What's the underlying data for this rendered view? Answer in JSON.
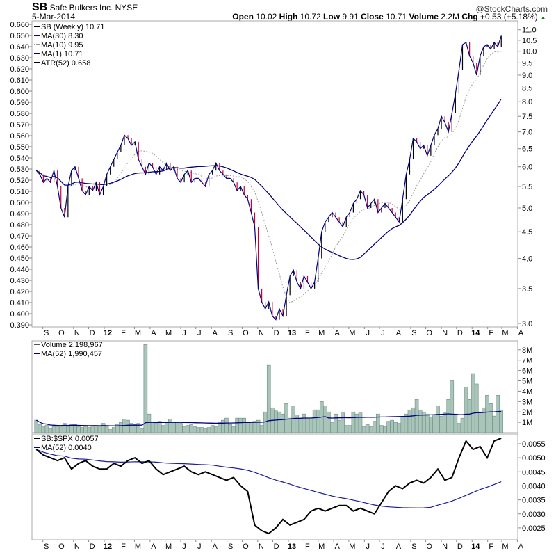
{
  "header": {
    "symbol": "SB",
    "company": "Safe Bulkers Inc. NYSE",
    "date": "5-Mar-2014",
    "watermark": "@StockCharts.com",
    "quote": {
      "open_label": "Open",
      "open": "10.02",
      "high_label": "High",
      "high": "10.72",
      "low_label": "Low",
      "low": "9.91",
      "close_label": "Close",
      "close": "10.71",
      "volume_label": "Volume",
      "volume": "2.2M",
      "chg_label": "Chg",
      "chg": "+0.53 (+5.18%)"
    }
  },
  "colors": {
    "price": "#000080",
    "ma30": "#000080",
    "ma10": "#999999",
    "up": "#000000",
    "down": "#cc0033",
    "volume_fill": "#a9c4b9",
    "volume_stroke": "#6f8f83",
    "ratio": "#000000",
    "ratio_ma": "#1a1aa0",
    "accent_up": "#008000"
  },
  "chart_data": [
    {
      "type": "line",
      "panel": "price",
      "legend": [
        "SB (Weekly) 10.71",
        "MA(30) 8.30",
        "MA(10) 9.95",
        "MA(1) 10.71",
        "ATR(52) 0.658"
      ],
      "right_ticks": [
        3.0,
        3.5,
        4.0,
        4.5,
        5.0,
        5.5,
        6.0,
        6.5,
        7.0,
        7.5,
        8.0,
        8.5,
        9.0,
        9.5,
        10.0,
        10.5,
        11.0
      ],
      "right_scale": "log",
      "left_ticks": [
        "0.660",
        "0.650",
        "0.640",
        "0.630",
        "0.620",
        "0.610",
        "0.600",
        "0.590",
        "0.580",
        "0.570",
        "0.560",
        "0.550",
        "0.540",
        "0.530",
        "0.520",
        "0.510",
        "0.500",
        "0.490",
        "0.480",
        "0.470",
        "0.460",
        "0.450",
        "0.440",
        "0.430",
        "0.420",
        "0.410",
        "0.400",
        "0.390"
      ],
      "x_ticks": [
        "S",
        "O",
        "N",
        "D",
        "12",
        "F",
        "M",
        "A",
        "M",
        "J",
        "J",
        "A",
        "S",
        "O",
        "N",
        "D",
        "13",
        "F",
        "M",
        "A",
        "M",
        "J",
        "J",
        "A",
        "S",
        "O",
        "N",
        "D",
        "14",
        "F",
        "M",
        "A"
      ],
      "x_range": [
        "2011-08",
        "2014-04"
      ],
      "grid": false,
      "legend_placement": "top-left",
      "closes": [
        5.9,
        5.8,
        5.6,
        5.7,
        5.6,
        5.9,
        5.5,
        5.0,
        4.8,
        5.5,
        5.9,
        6.0,
        5.7,
        5.4,
        5.3,
        5.5,
        5.4,
        5.6,
        5.3,
        5.5,
        5.8,
        6.0,
        6.2,
        6.4,
        6.6,
        6.9,
        6.8,
        6.6,
        6.7,
        6.2,
        6.0,
        5.8,
        6.1,
        6.0,
        5.8,
        6.0,
        5.9,
        6.1,
        5.9,
        6.0,
        5.7,
        5.6,
        5.8,
        5.9,
        5.6,
        5.7,
        5.7,
        5.6,
        5.5,
        5.8,
        5.9,
        6.1,
        5.9,
        5.8,
        5.7,
        5.7,
        5.6,
        5.4,
        5.5,
        5.3,
        5.2,
        4.9,
        4.6,
        3.5,
        3.3,
        3.2,
        3.3,
        3.1,
        3.05,
        3.2,
        3.1,
        3.4,
        3.7,
        3.8,
        3.6,
        3.5,
        3.7,
        3.6,
        3.5,
        3.6,
        4.0,
        4.5,
        4.7,
        4.8,
        4.9,
        4.8,
        4.7,
        4.6,
        4.8,
        4.9,
        5.1,
        5.2,
        5.4,
        5.3,
        5.0,
        5.1,
        5.2,
        4.9,
        5.0,
        5.1,
        5.0,
        4.9,
        4.8,
        4.7,
        5.2,
        5.8,
        6.2,
        6.8,
        6.7,
        6.5,
        6.6,
        6.3,
        6.6,
        6.9,
        7.1,
        7.5,
        7.3,
        7.0,
        7.6,
        8.3,
        9.2,
        10.3,
        10.4,
        9.8,
        9.5,
        9.0,
        9.8,
        10.2,
        10.3,
        10.1,
        10.4,
        10.2,
        10.71
      ]
    },
    {
      "type": "bar",
      "panel": "volume",
      "legend": [
        "Volume 2,198,967",
        "MA(52) 1,990,457"
      ],
      "y_ticks": [
        "1M",
        "2M",
        "3M",
        "4M",
        "5M",
        "6M",
        "7M",
        "8M"
      ],
      "unit": "millions",
      "values": [
        1.2,
        0.8,
        0.6,
        0.7,
        0.4,
        0.6,
        0.6,
        0.6,
        0.9,
        0.6,
        0.8,
        0.8,
        0.6,
        0.5,
        0.6,
        0.5,
        0.7,
        0.7,
        0.6,
        0.9,
        0.6,
        0.3,
        0.5,
        0.8,
        1.0,
        1.3,
        1.2,
        0.9,
        0.8,
        0.9,
        0.4,
        8.5,
        1.8,
        1.0,
        0.9,
        1.1,
        0.7,
        1.0,
        1.3,
        1.0,
        1.0,
        0.9,
        0.6,
        0.7,
        0.8,
        0.6,
        0.5,
        0.5,
        0.4,
        0.5,
        0.7,
        0.6,
        1.0,
        1.2,
        1.4,
        0.8,
        0.6,
        1.4,
        1.4,
        1.4,
        1.0,
        1.0,
        1.1,
        1.2,
        0.7,
        2.0,
        6.5,
        2.4,
        2.1,
        2.0,
        1.8,
        2.8,
        1.4,
        2.6,
        1.7,
        1.3,
        1.8,
        1.4,
        1.4,
        2.2,
        2.2,
        3.0,
        2.6,
        2.0,
        1.0,
        1.8,
        1.2,
        1.9,
        0.7,
        0.7,
        2.0,
        1.8,
        1.9,
        0.6,
        0.8,
        0.6,
        1.1,
        1.8,
        0.7,
        0.6,
        1.1,
        1.2,
        1.0,
        0.9,
        1.5,
        1.8,
        2.2,
        2.4,
        3.2,
        2.2,
        2.0,
        1.8,
        1.5,
        1.7,
        2.6,
        1.6,
        1.9,
        3.2,
        5.0,
        1.8,
        0.9,
        1.4,
        4.4,
        3.2,
        5.7,
        4.7,
        2.0,
        2.4,
        3.6,
        2.8,
        1.6,
        3.6,
        2.2
      ]
    },
    {
      "type": "line",
      "panel": "relative",
      "legend": [
        "SB:$SPX 0.0057",
        "MA(52) 0.0040"
      ],
      "y_ticks": [
        "0.0025",
        "0.0030",
        "0.0035",
        "0.0040",
        "0.0045",
        "0.0050",
        "0.0055"
      ],
      "values": [
        0.0053,
        0.0051,
        0.005,
        0.0049,
        0.005,
        0.0046,
        0.0048,
        0.0049,
        0.0047,
        0.0046,
        0.0046,
        0.0048,
        0.0047,
        0.0049,
        0.005,
        0.0048,
        0.0049,
        0.0046,
        0.0044,
        0.0045,
        0.0046,
        0.0047,
        0.0045,
        0.0044,
        0.0045,
        0.0044,
        0.0043,
        0.0042,
        0.0043,
        0.004,
        0.0038,
        0.0026,
        0.0024,
        0.0023,
        0.0025,
        0.0028,
        0.0026,
        0.0027,
        0.0028,
        0.0031,
        0.0032,
        0.0031,
        0.0032,
        0.0033,
        0.0033,
        0.0031,
        0.0032,
        0.0031,
        0.003,
        0.0034,
        0.0038,
        0.004,
        0.0039,
        0.0041,
        0.0042,
        0.0041,
        0.0043,
        0.0046,
        0.0042,
        0.0043,
        0.005,
        0.0056,
        0.0053,
        0.0054,
        0.005,
        0.0056,
        0.0057
      ]
    }
  ]
}
